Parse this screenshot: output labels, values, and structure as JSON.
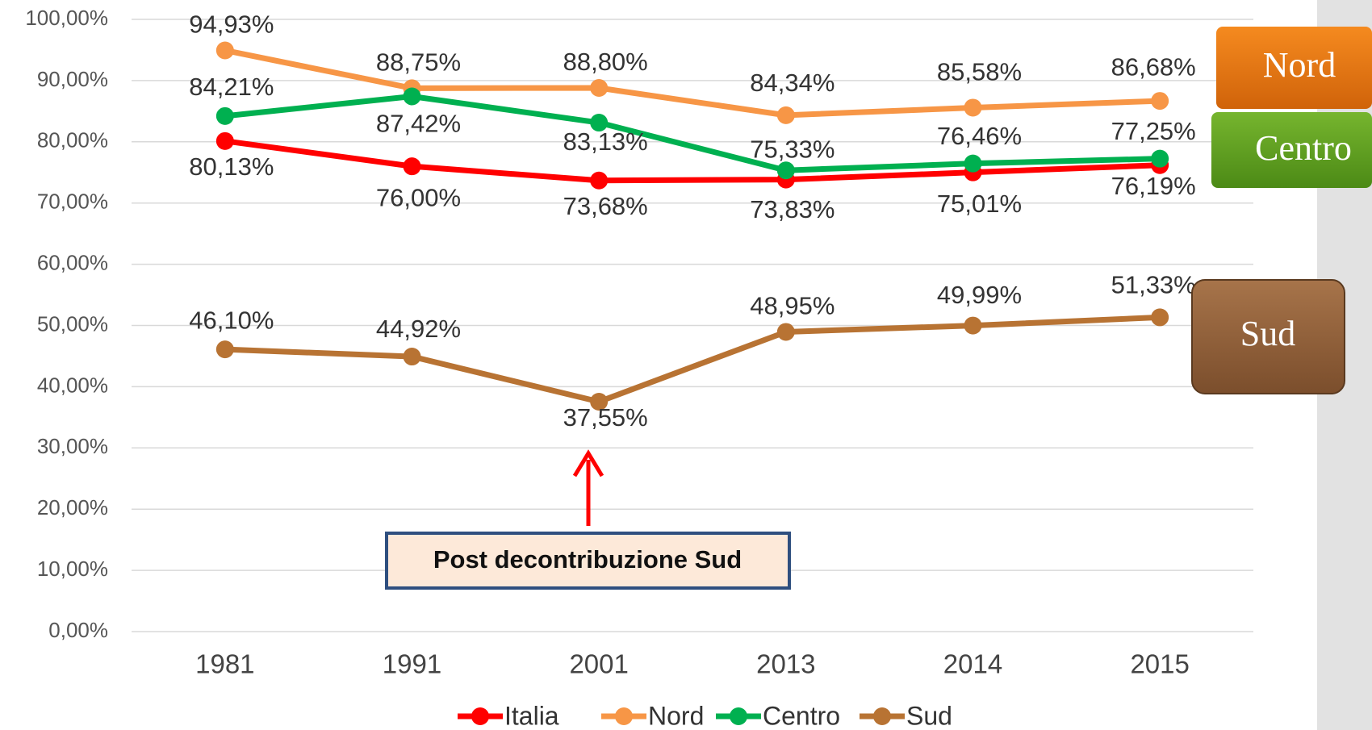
{
  "chart_data": {
    "type": "line",
    "categories": [
      "1981",
      "1991",
      "2001",
      "2013",
      "2014",
      "2015"
    ],
    "series": [
      {
        "name": "Italia",
        "color": "#ff0000",
        "values": [
          80.13,
          76.0,
          73.68,
          73.83,
          75.01,
          76.19
        ],
        "value_labels": [
          "80,13%",
          "76,00%",
          "73,68%",
          "73,83%",
          "75,01%",
          "76,19%"
        ]
      },
      {
        "name": "Nord",
        "color": "#f79646",
        "values": [
          94.93,
          88.75,
          88.8,
          84.34,
          85.58,
          86.68
        ],
        "value_labels": [
          "94,93%",
          "88,75%",
          "88,80%",
          "84,34%",
          "85,58%",
          "86,68%"
        ]
      },
      {
        "name": "Centro",
        "color": "#00b050",
        "values": [
          84.21,
          87.42,
          83.13,
          75.33,
          76.46,
          77.25
        ],
        "value_labels": [
          "84,21%",
          "87,42%",
          "83,13%",
          "75,33%",
          "76,46%",
          "77,25%"
        ]
      },
      {
        "name": "Sud",
        "color": "#b87333",
        "values": [
          46.1,
          44.92,
          37.55,
          48.95,
          49.99,
          51.33
        ],
        "value_labels": [
          "46,10%",
          "44,92%",
          "37,55%",
          "48,95%",
          "49,99%",
          "51,33%"
        ]
      }
    ],
    "ylim": [
      0,
      100
    ],
    "yticks": [
      {
        "value": 0,
        "label": "0,00%"
      },
      {
        "value": 10,
        "label": "10,00%"
      },
      {
        "value": 20,
        "label": "20,00%"
      },
      {
        "value": 30,
        "label": "30,00%"
      },
      {
        "value": 40,
        "label": "40,00%"
      },
      {
        "value": 50,
        "label": "50,00%"
      },
      {
        "value": 60,
        "label": "60,00%"
      },
      {
        "value": 70,
        "label": "70,00%"
      },
      {
        "value": 80,
        "label": "80,00%"
      },
      {
        "value": 90,
        "label": "90,00%"
      },
      {
        "value": 100,
        "label": "100,00%"
      }
    ],
    "grid": true,
    "legend": "bottom",
    "annotation": "Post decontribuzione Sud",
    "side_labels": [
      "Nord",
      "Centro",
      "Sud"
    ]
  }
}
